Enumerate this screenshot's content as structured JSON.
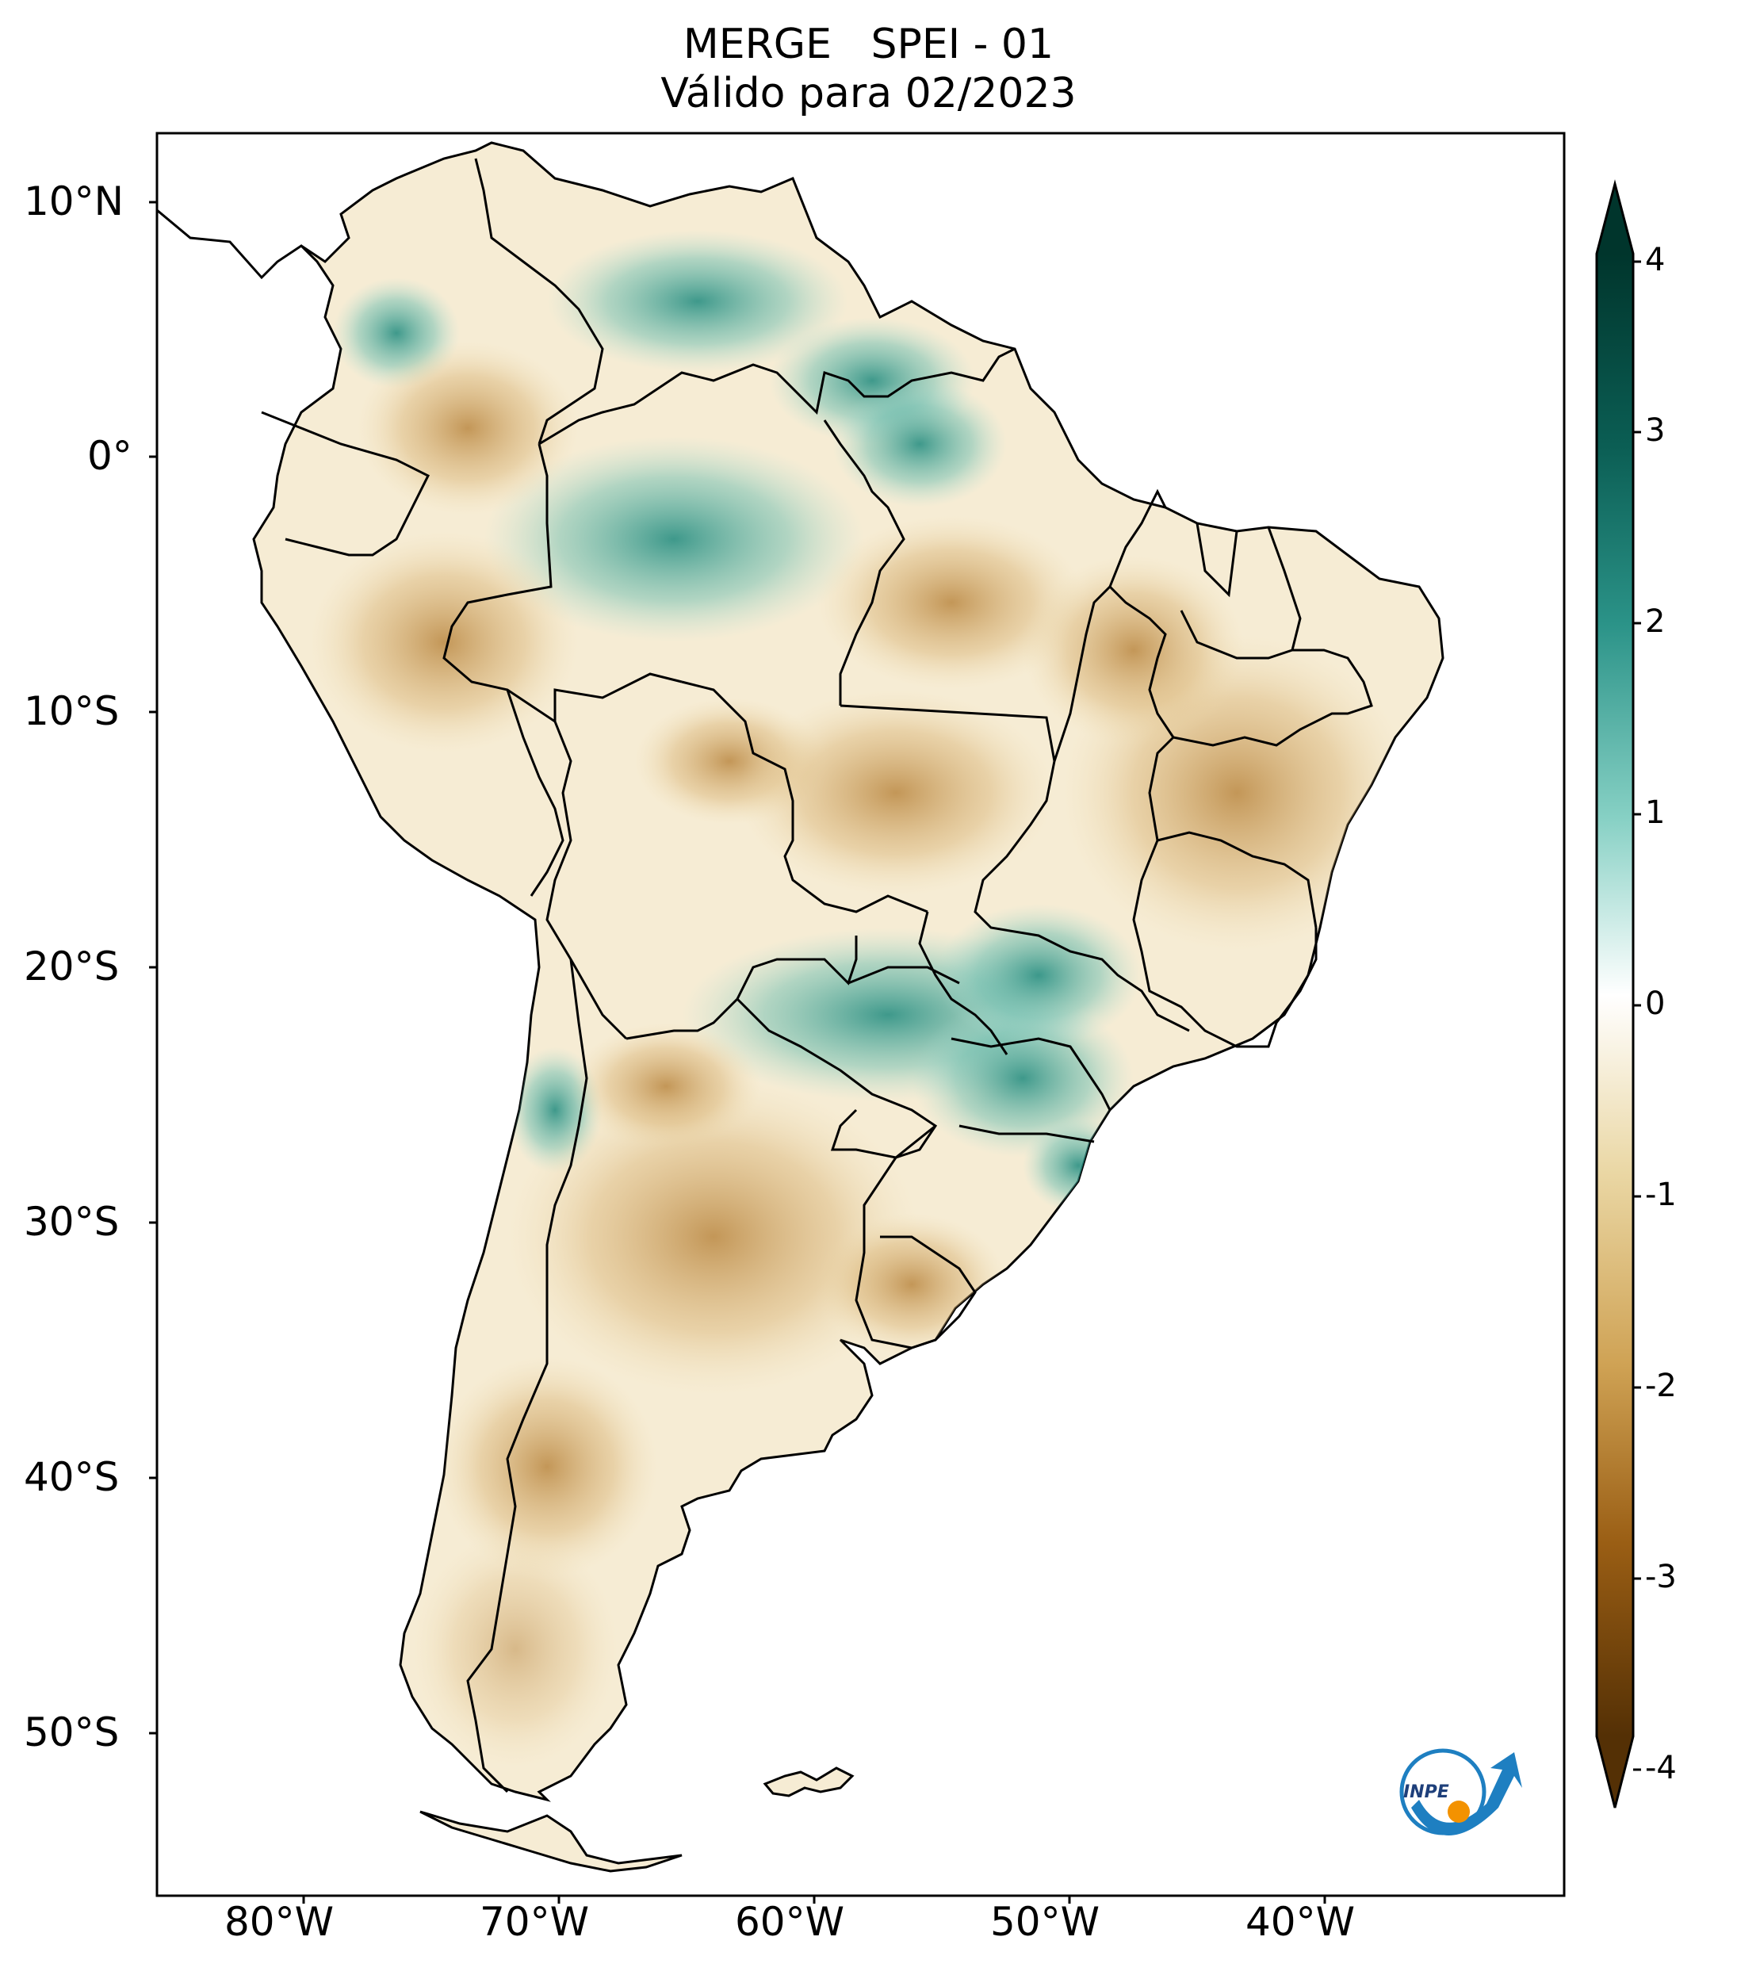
{
  "title": {
    "line1": "MERGE   SPEI - 01",
    "line2": "Válido para 02/2023"
  },
  "axes": {
    "lat_ticks": [
      "10°N",
      "0°",
      "10°S",
      "20°S",
      "30°S",
      "40°S",
      "50°S"
    ],
    "lon_ticks": [
      "80°W",
      "70°W",
      "60°W",
      "50°W",
      "40°W"
    ]
  },
  "colorbar": {
    "ticks": [
      "4",
      "3",
      "2",
      "1",
      "0",
      "-1",
      "-2",
      "-3",
      "-4"
    ],
    "range": [
      -4,
      4
    ],
    "extend": "both",
    "colors": {
      "max": "#00352c",
      "high": "#1d8278",
      "mid_high": "#86d0c4",
      "zero": "#ffffff",
      "mid_low": "#ead7a4",
      "low": "#c28a3a",
      "min": "#543005"
    }
  },
  "map": {
    "ocean_color": "#ffffff",
    "border_color": "#000000",
    "wet_color": "#2a9a8c",
    "dry_color": "#c08a3c"
  },
  "logo": {
    "text": "INPE",
    "ring_color": "#1e7fc1",
    "dot_color": "#f39200"
  }
}
